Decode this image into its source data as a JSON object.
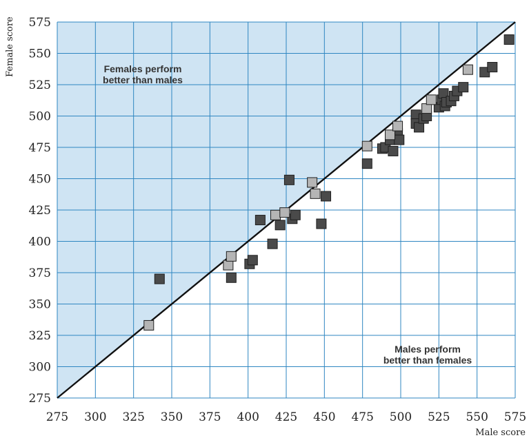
{
  "chart_data": {
    "type": "scatter",
    "xlabel": "Male score",
    "ylabel": "Female score",
    "xlim": [
      275,
      575
    ],
    "ylim": [
      275,
      575
    ],
    "x_ticks": [
      275,
      300,
      325,
      350,
      375,
      400,
      425,
      450,
      475,
      500,
      525,
      550,
      575
    ],
    "y_ticks": [
      275,
      300,
      325,
      350,
      375,
      400,
      425,
      450,
      475,
      500,
      525,
      550,
      575
    ],
    "grid": true,
    "reference_line": "y = x",
    "annotations": {
      "upper_region": [
        "Females perform",
        "better than males"
      ],
      "lower_region": [
        "Males perform",
        "better than females"
      ]
    },
    "colors": {
      "upper_region_fill": "#cfe4f3",
      "grid": "#2e86c1",
      "dark_marker": "#4a4a4a",
      "light_marker": "#b5b5b5",
      "marker_edge": "#1e1e1e"
    },
    "series": [
      {
        "marker": "dark-square",
        "points": [
          [
            342,
            370
          ],
          [
            389,
            371
          ],
          [
            401,
            382
          ],
          [
            403,
            385
          ],
          [
            408,
            417
          ],
          [
            416,
            398
          ],
          [
            421,
            413
          ],
          [
            427,
            449
          ],
          [
            429,
            418
          ],
          [
            431,
            421
          ],
          [
            448,
            414
          ],
          [
            451,
            436
          ],
          [
            478,
            462
          ],
          [
            488,
            474
          ],
          [
            490,
            475
          ],
          [
            493,
            481
          ],
          [
            495,
            472
          ],
          [
            498,
            486
          ],
          [
            499,
            481
          ],
          [
            510,
            501
          ],
          [
            510,
            494
          ],
          [
            512,
            491
          ],
          [
            515,
            498
          ],
          [
            517,
            500
          ],
          [
            525,
            507
          ],
          [
            527,
            513
          ],
          [
            528,
            518
          ],
          [
            529,
            508
          ],
          [
            530,
            511
          ],
          [
            533,
            512
          ],
          [
            535,
            516
          ],
          [
            537,
            520
          ],
          [
            541,
            523
          ],
          [
            555,
            535
          ],
          [
            560,
            539
          ],
          [
            571,
            561
          ]
        ]
      },
      {
        "marker": "light-square",
        "points": [
          [
            335,
            333
          ],
          [
            387,
            381
          ],
          [
            389,
            388
          ],
          [
            418,
            421
          ],
          [
            424,
            423
          ],
          [
            442,
            447
          ],
          [
            444,
            438
          ],
          [
            478,
            476
          ],
          [
            493,
            485
          ],
          [
            498,
            492
          ],
          [
            517,
            506
          ],
          [
            520,
            513
          ],
          [
            544,
            537
          ]
        ]
      }
    ]
  }
}
